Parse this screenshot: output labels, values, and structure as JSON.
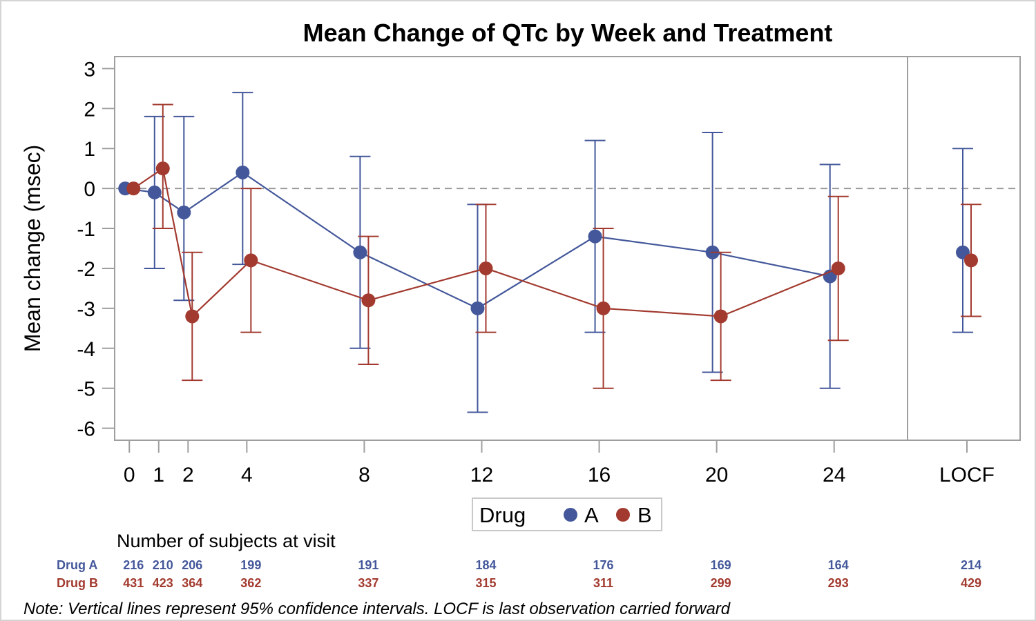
{
  "chart_data": {
    "type": "line",
    "title": "Mean Change of QTc by Week and Treatment",
    "ylabel": "Mean change (msec)",
    "xlabel": "",
    "ylim": [
      -6.3,
      3.3
    ],
    "yticks": [
      3,
      2,
      1,
      0,
      -1,
      -2,
      -3,
      -4,
      -5,
      -6
    ],
    "xlim": [
      -0.5,
      26.5
    ],
    "x_ticks": [
      0,
      1,
      2,
      4,
      8,
      12,
      16,
      20,
      24
    ],
    "locf_label": "LOCF",
    "reference_line": 0,
    "legend": {
      "title": "Drug",
      "position": "bottom-center"
    },
    "colors": {
      "A": "#43579a",
      "B": "#a23a2f",
      "axis": "#9e9e9e",
      "ref": "#999999"
    },
    "series": [
      {
        "name": "A",
        "x": [
          0,
          1,
          2,
          4,
          8,
          12,
          16,
          20,
          24
        ],
        "mean": [
          0.0,
          -0.1,
          -0.6,
          0.4,
          -1.6,
          -3.0,
          -1.2,
          -1.6,
          -2.2
        ],
        "lower": [
          0.0,
          -2.0,
          -2.8,
          -1.9,
          -4.0,
          -5.6,
          -3.6,
          -4.6,
          -5.0
        ],
        "upper": [
          0.0,
          1.8,
          1.8,
          2.4,
          0.8,
          -0.4,
          1.2,
          1.4,
          0.6
        ],
        "locf": {
          "mean": -1.6,
          "lower": -3.6,
          "upper": 1.0
        }
      },
      {
        "name": "B",
        "x": [
          0,
          1,
          2,
          4,
          8,
          12,
          16,
          20,
          24
        ],
        "mean": [
          0.0,
          0.5,
          -3.2,
          -1.8,
          -2.8,
          -2.0,
          -3.0,
          -3.2,
          -2.0
        ],
        "lower": [
          0.0,
          -1.0,
          -4.8,
          -3.6,
          -4.4,
          -3.6,
          -5.0,
          -4.8,
          -3.8
        ],
        "upper": [
          0.0,
          2.1,
          -1.6,
          0.0,
          -1.2,
          -0.4,
          -1.0,
          -1.6,
          -0.2
        ],
        "locf": {
          "mean": -1.8,
          "lower": -3.2,
          "upper": -0.4
        }
      }
    ],
    "subjects": {
      "title": "Number of subjects at visit",
      "rows": [
        {
          "label": "Drug A",
          "values": [
            "216",
            "210",
            "206",
            "199",
            "191",
            "184",
            "176",
            "169",
            "164"
          ],
          "locf": "214"
        },
        {
          "label": "Drug B",
          "values": [
            "431",
            "423",
            "364",
            "362",
            "337",
            "315",
            "311",
            "299",
            "293"
          ],
          "locf": "429"
        }
      ]
    },
    "note": "Note: Vertical lines represent 95% confidence intervals.  LOCF is last observation carried forward"
  }
}
